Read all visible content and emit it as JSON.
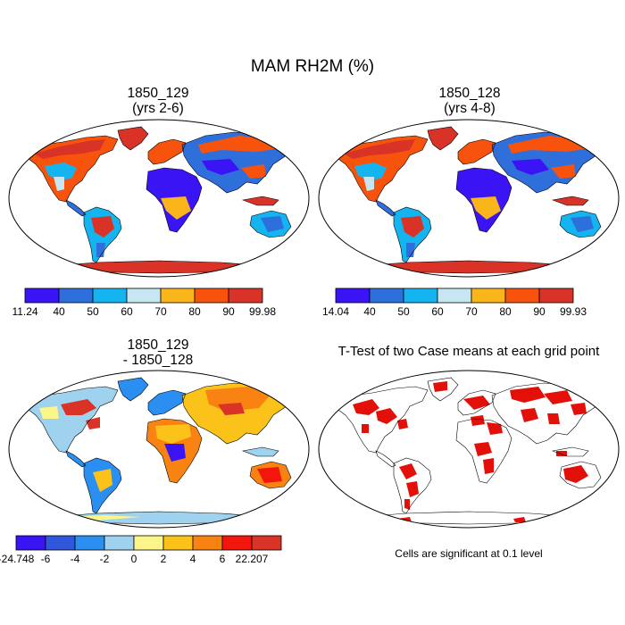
{
  "figure": {
    "title": "MAM RH2M (%)"
  },
  "panels": {
    "top_left": {
      "title_line1": "1850_129",
      "title_line2": "(yrs 2-6)"
    },
    "top_right": {
      "title_line1": "1850_128",
      "title_line2": "(yrs 4-8)"
    },
    "bottom_left": {
      "title_line1": "1850_129",
      "title_line2": "- 1850_128"
    },
    "bottom_right": {
      "title": "T-Test of two Case means at each grid point",
      "note": "Cells are significant at 0.1 level"
    }
  },
  "colorbars": {
    "top_left": {
      "colors": [
        "#3b14f5",
        "#2e6fdc",
        "#13b4ef",
        "#c5e6f2",
        "#fab51a",
        "#f7530d",
        "#d93328"
      ],
      "labels": [
        "11.24",
        "40",
        "50",
        "60",
        "70",
        "80",
        "90",
        "99.98"
      ]
    },
    "top_right": {
      "colors": [
        "#3b14f5",
        "#2e6fdc",
        "#13b4ef",
        "#c5e6f2",
        "#fab51a",
        "#f7530d",
        "#d93328"
      ],
      "labels": [
        "14.04",
        "40",
        "50",
        "60",
        "70",
        "80",
        "90",
        "99.93"
      ]
    },
    "bottom_left": {
      "colors": [
        "#3b14f5",
        "#2e57dc",
        "#2a8ff0",
        "#9ed2ee",
        "#fcf58a",
        "#fbc319",
        "#f98312",
        "#f3160c",
        "#d93328"
      ],
      "labels": [
        "-24.748",
        "-6",
        "-4",
        "-2",
        "0",
        "2",
        "4",
        "6",
        "22.207"
      ]
    }
  },
  "map_colors": {
    "land_outline": "#000000",
    "ttest_significant": "#e3100a"
  }
}
